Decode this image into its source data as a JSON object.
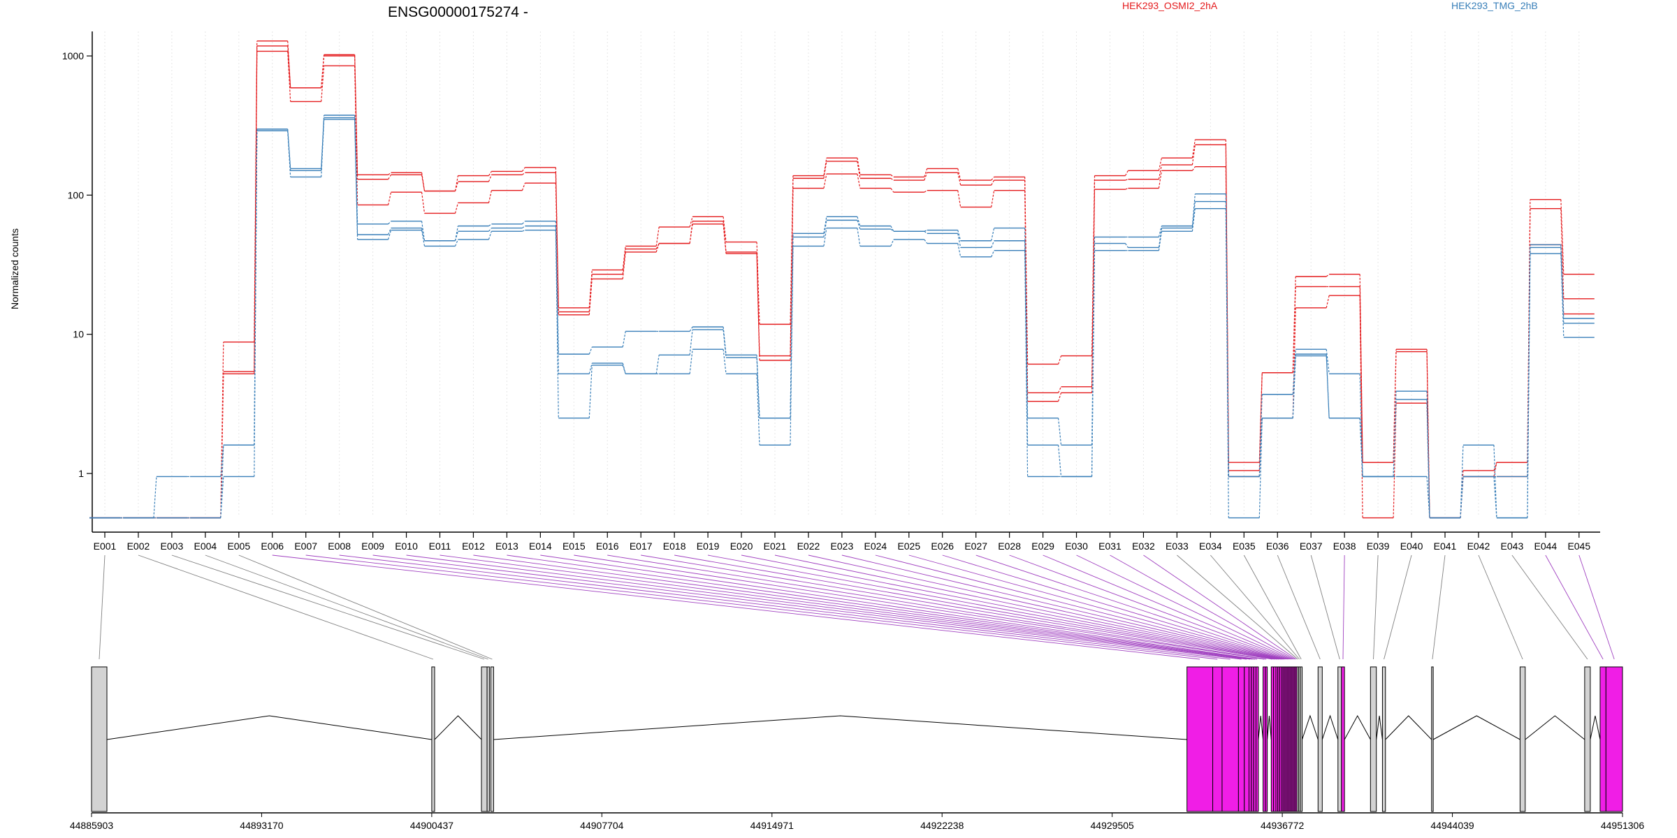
{
  "chart_data": [
    {
      "type": "line",
      "title": "ENSG00000175274 -",
      "xlabel": "",
      "ylabel": "Normalized counts",
      "yscale": "log",
      "ylim": [
        0.5,
        1500
      ],
      "yticks": [
        "1",
        "10",
        "100",
        "1000"
      ],
      "ytick_values": [
        1,
        10,
        100,
        1000
      ],
      "grid": "vertical, light dotted",
      "legend_position": "top",
      "colors": {
        "HEK293_OSMI2_2hA": "#e41a1c",
        "HEK293_TMG_2hB": "#377eb8"
      },
      "categories": [
        "E001",
        "E002",
        "E003",
        "E004",
        "E005",
        "E006",
        "E007",
        "E008",
        "E009",
        "E010",
        "E011",
        "E012",
        "E013",
        "E014",
        "E015",
        "E016",
        "E017",
        "E018",
        "E019",
        "E020",
        "E021",
        "E022",
        "E023",
        "E024",
        "E025",
        "E026",
        "E027",
        "E028",
        "E029",
        "E030",
        "E031",
        "E032",
        "E033",
        "E034",
        "E035",
        "E036",
        "E037",
        "E038",
        "E039",
        "E040",
        "E041",
        "E042",
        "E043",
        "E044",
        "E045"
      ],
      "series": [
        {
          "name": "HEK293_OSMI2_2hA",
          "color": "#e41a1c",
          "values": [
            0.48,
            0.48,
            0.48,
            0.48,
            8.8,
            1280,
            590,
            1020,
            140,
            145,
            107,
            138,
            148,
            158,
            15.5,
            29,
            43,
            59,
            70,
            46,
            11.8,
            138,
            185,
            140,
            135,
            155,
            128,
            135,
            6.1,
            7.0,
            138,
            150,
            185,
            250,
            1.2,
            5.3,
            26,
            27,
            1.2,
            7.8,
            0.48,
            1.05,
            1.2,
            93,
            27
          ]
        },
        {
          "name": "HEK293_OSMI2_2hA",
          "color": "#e41a1c",
          "values": [
            0.48,
            0.48,
            0.48,
            0.48,
            5.4,
            1180,
            590,
            1000,
            130,
            140,
            107,
            125,
            140,
            145,
            14.5,
            27,
            41,
            45,
            65,
            39,
            7.0,
            132,
            175,
            132,
            128,
            145,
            118,
            128,
            3.8,
            4.2,
            128,
            130,
            165,
            230,
            1.05,
            5.3,
            22,
            22,
            1.2,
            7.5,
            0.48,
            0.95,
            1.2,
            80,
            18
          ]
        },
        {
          "name": "HEK293_OSMI2_2hA",
          "color": "#e41a1c",
          "values": [
            0.48,
            0.48,
            0.48,
            0.48,
            5.2,
            1080,
            470,
            850,
            85,
            105,
            74,
            88,
            108,
            122,
            13.8,
            25,
            39,
            45,
            62,
            38,
            6.5,
            112,
            142,
            112,
            105,
            108,
            82,
            108,
            3.3,
            3.8,
            110,
            112,
            150,
            160,
            0.95,
            2.5,
            15.5,
            19,
            0.48,
            3.2,
            0.48,
            0.95,
            0.95,
            44,
            14
          ]
        },
        {
          "name": "HEK293_TMG_2hB",
          "color": "#377eb8",
          "values": [
            0.48,
            0.48,
            0.95,
            0.95,
            1.6,
            298,
            155,
            375,
            62,
            65,
            47,
            60,
            62,
            65,
            7.2,
            8.1,
            10.5,
            10.5,
            11.3,
            7.1,
            2.5,
            53,
            70,
            60,
            55,
            56,
            47,
            58,
            2.5,
            1.6,
            50,
            50,
            60,
            102,
            0.95,
            3.7,
            7.8,
            5.2,
            0.95,
            3.9,
            0.48,
            1.6,
            0.48,
            44,
            13
          ]
        },
        {
          "name": "HEK293_TMG_2hB",
          "color": "#377eb8",
          "values": [
            0.48,
            0.48,
            0.48,
            0.48,
            1.6,
            290,
            150,
            360,
            52,
            58,
            47,
            55,
            58,
            60,
            5.2,
            6.2,
            5.2,
            7.1,
            10.8,
            6.8,
            2.5,
            50,
            66,
            57,
            55,
            53,
            42,
            47,
            1.6,
            0.95,
            45,
            42,
            58,
            90,
            0.95,
            2.5,
            7.2,
            2.5,
            0.95,
            3.4,
            0.48,
            0.95,
            0.95,
            42,
            12
          ]
        },
        {
          "name": "HEK293_TMG_2hB",
          "color": "#377eb8",
          "values": [
            0.48,
            0.48,
            0.48,
            0.48,
            0.95,
            290,
            135,
            350,
            48,
            56,
            43,
            48,
            55,
            56,
            2.5,
            6.0,
            5.2,
            5.2,
            7.8,
            5.2,
            1.6,
            43,
            58,
            43,
            48,
            45,
            36,
            40,
            0.95,
            0.95,
            40,
            40,
            55,
            80,
            0.48,
            2.5,
            7.0,
            2.5,
            0.95,
            0.95,
            0.48,
            0.95,
            0.48,
            38,
            9.5
          ]
        }
      ]
    },
    {
      "type": "gene-model",
      "xlim": [
        44885903,
        44951306
      ],
      "xticks": [
        "44885903",
        "44893170",
        "44900437",
        "44907704",
        "44914971",
        "44922238",
        "44929505",
        "44936772",
        "44944039",
        "44951306"
      ],
      "colors": {
        "exon": "#d3d3d3",
        "highlighted_exon": "#f01ee6",
        "intron": "#000000",
        "connector": "#808080",
        "highlighted_connector": "#a040c0"
      },
      "exons": [
        {
          "id": "E001",
          "start": 44885903,
          "end": 44886560,
          "highlight": false
        },
        {
          "id": "E002",
          "start": 44900437,
          "end": 44900560,
          "highlight": false
        },
        {
          "id": "E003",
          "start": 44902560,
          "end": 44902800,
          "highlight": false
        },
        {
          "id": "E004",
          "start": 44902800,
          "end": 44902900,
          "highlight": false
        },
        {
          "id": "E005",
          "start": 44902960,
          "end": 44903080,
          "highlight": false
        },
        {
          "id": "E006",
          "start": 44932700,
          "end": 44933800,
          "highlight": true
        },
        {
          "id": "E007",
          "start": 44933800,
          "end": 44934200,
          "highlight": true
        },
        {
          "id": "E008",
          "start": 44934200,
          "end": 44934900,
          "highlight": true
        },
        {
          "id": "E009",
          "start": 44934900,
          "end": 44935150,
          "highlight": true
        },
        {
          "id": "E010",
          "start": 44935150,
          "end": 44935350,
          "highlight": true
        },
        {
          "id": "E011",
          "start": 44935350,
          "end": 44935450,
          "highlight": true
        },
        {
          "id": "E012",
          "start": 44935450,
          "end": 44935550,
          "highlight": true
        },
        {
          "id": "E013",
          "start": 44935550,
          "end": 44935650,
          "highlight": true
        },
        {
          "id": "E014",
          "start": 44935650,
          "end": 44935750,
          "highlight": true
        },
        {
          "id": "E015",
          "start": 44935950,
          "end": 44936050,
          "highlight": true
        },
        {
          "id": "E016",
          "start": 44936050,
          "end": 44936130,
          "highlight": true
        },
        {
          "id": "E017",
          "start": 44936300,
          "end": 44936400,
          "highlight": true
        },
        {
          "id": "E018",
          "start": 44936400,
          "end": 44936500,
          "highlight": true
        },
        {
          "id": "E019",
          "start": 44936500,
          "end": 44936580,
          "highlight": true
        },
        {
          "id": "E020",
          "start": 44936580,
          "end": 44936660,
          "highlight": true
        },
        {
          "id": "E021",
          "start": 44936660,
          "end": 44936740,
          "highlight": true
        },
        {
          "id": "E022",
          "start": 44936740,
          "end": 44936800,
          "highlight": true
        },
        {
          "id": "E023",
          "start": 44936800,
          "end": 44936860,
          "highlight": true
        },
        {
          "id": "E024",
          "start": 44936860,
          "end": 44936920,
          "highlight": true
        },
        {
          "id": "E025",
          "start": 44936920,
          "end": 44936980,
          "highlight": true
        },
        {
          "id": "E026",
          "start": 44936980,
          "end": 44937040,
          "highlight": true
        },
        {
          "id": "E027",
          "start": 44937040,
          "end": 44937100,
          "highlight": true
        },
        {
          "id": "E028",
          "start": 44937100,
          "end": 44937160,
          "highlight": true
        },
        {
          "id": "E029",
          "start": 44937160,
          "end": 44937220,
          "highlight": true
        },
        {
          "id": "E030",
          "start": 44937220,
          "end": 44937280,
          "highlight": true
        },
        {
          "id": "E031",
          "start": 44937280,
          "end": 44937340,
          "highlight": true
        },
        {
          "id": "E032",
          "start": 44937340,
          "end": 44937400,
          "highlight": true
        },
        {
          "id": "E033",
          "start": 44937400,
          "end": 44937470,
          "highlight": false
        },
        {
          "id": "E034",
          "start": 44937470,
          "end": 44937540,
          "highlight": false
        },
        {
          "id": "E035",
          "start": 44937540,
          "end": 44937620,
          "highlight": false
        },
        {
          "id": "E036",
          "start": 44938300,
          "end": 44938480,
          "highlight": false
        },
        {
          "id": "E037",
          "start": 44939150,
          "end": 44939300,
          "highlight": false
        },
        {
          "id": "E038",
          "start": 44939300,
          "end": 44939430,
          "highlight": true
        },
        {
          "id": "E039",
          "start": 44940540,
          "end": 44940790,
          "highlight": false
        },
        {
          "id": "E040",
          "start": 44941050,
          "end": 44941180,
          "highlight": false
        },
        {
          "id": "E041",
          "start": 44943150,
          "end": 44943220,
          "highlight": false
        },
        {
          "id": "E042",
          "start": 44946930,
          "end": 44947150,
          "highlight": false
        },
        {
          "id": "E043",
          "start": 44949690,
          "end": 44949930,
          "highlight": false
        },
        {
          "id": "E044",
          "start": 44950350,
          "end": 44950600,
          "highlight": true
        },
        {
          "id": "E045",
          "start": 44950600,
          "end": 44951306,
          "highlight": true
        }
      ]
    }
  ]
}
